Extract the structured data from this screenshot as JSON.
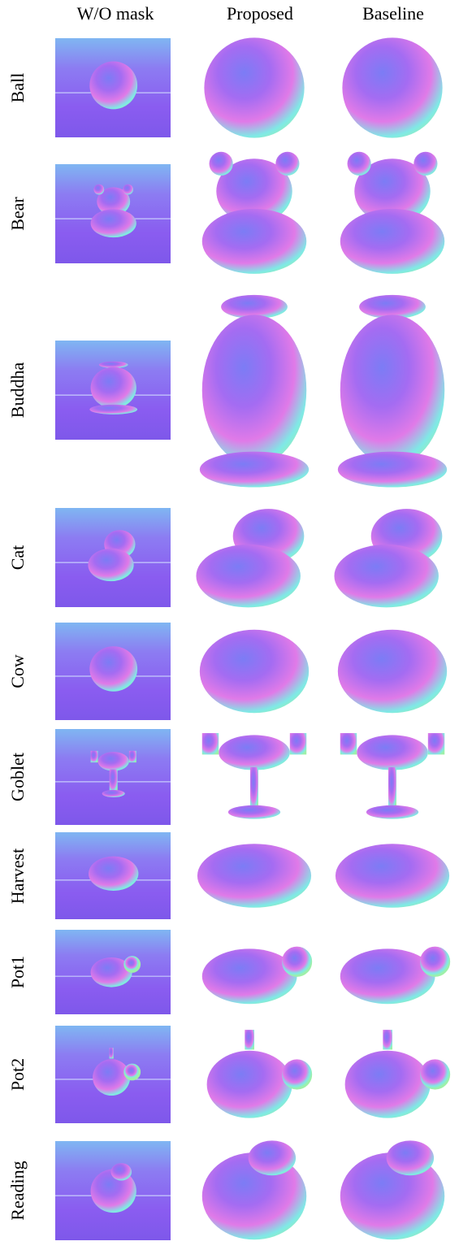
{
  "columns": [
    "W/O mask",
    "Proposed",
    "Baseline"
  ],
  "rows": [
    {
      "label": "Ball",
      "object": "ball"
    },
    {
      "label": "Bear",
      "object": "bear"
    },
    {
      "label": "Buddha",
      "object": "buddha"
    },
    {
      "label": "Cat",
      "object": "cat"
    },
    {
      "label": "Cow",
      "object": "cow"
    },
    {
      "label": "Goblet",
      "object": "goblet"
    },
    {
      "label": "Harvest",
      "object": "harvest"
    },
    {
      "label": "Pot1",
      "object": "pot1"
    },
    {
      "label": "Pot2",
      "object": "pot2"
    },
    {
      "label": "Reading",
      "object": "reading"
    }
  ],
  "colors": {
    "background_tile": "#8a5cf0",
    "normal_cyan": "#7fe9e6",
    "normal_magenta": "#e07ae8",
    "normal_blue": "#7c7cf5",
    "normal_green": "#9ef0a8",
    "normal_purple": "#a46cf2"
  }
}
